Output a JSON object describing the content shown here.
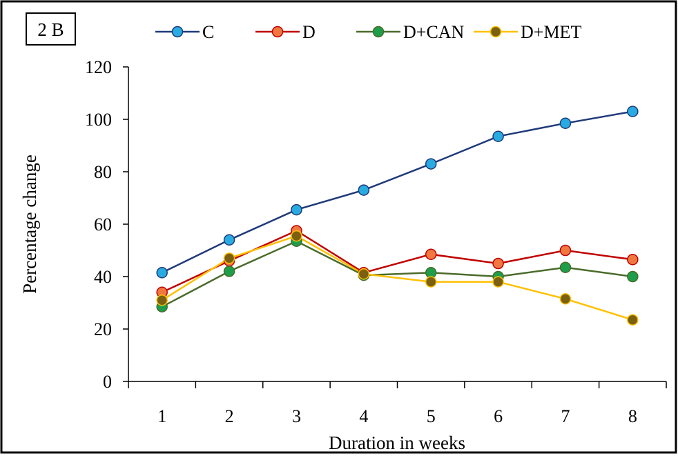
{
  "chart_data": {
    "type": "line",
    "panel_label": "2 B",
    "xlabel": "Duration in weeks",
    "ylabel": "Percentage change",
    "x": [
      1,
      2,
      3,
      4,
      5,
      6,
      7,
      8
    ],
    "x_tick_labels": [
      "1",
      "2",
      "3",
      "4",
      "5",
      "6",
      "7",
      "8"
    ],
    "ylim": [
      0,
      120
    ],
    "y_ticks": [
      0,
      20,
      40,
      60,
      80,
      100,
      120
    ],
    "y_tick_labels": [
      "0",
      "20",
      "40",
      "60",
      "80",
      "100",
      "120"
    ],
    "grid": false,
    "legend_position": "top",
    "series": [
      {
        "name": "C",
        "line_color": "#1f3a7a",
        "marker_color": "#29abe2",
        "values": [
          41.5,
          54,
          65.5,
          73,
          83,
          93.5,
          98.5,
          103
        ]
      },
      {
        "name": "D",
        "line_color": "#c00000",
        "marker_color": "#f07840",
        "values": [
          34,
          46,
          57.5,
          41.5,
          48.5,
          45,
          50,
          46.5
        ]
      },
      {
        "name": "D+CAN",
        "line_color": "#4a6b2a",
        "marker_color": "#1e9e4a",
        "values": [
          28.5,
          42,
          53.5,
          40.5,
          41.5,
          40,
          43.5,
          40
        ]
      },
      {
        "name": "D+MET",
        "line_color": "#ffc000",
        "marker_color": "#7a6010",
        "values": [
          31,
          47,
          55.5,
          41,
          38,
          38,
          31.5,
          23.5
        ]
      }
    ]
  }
}
